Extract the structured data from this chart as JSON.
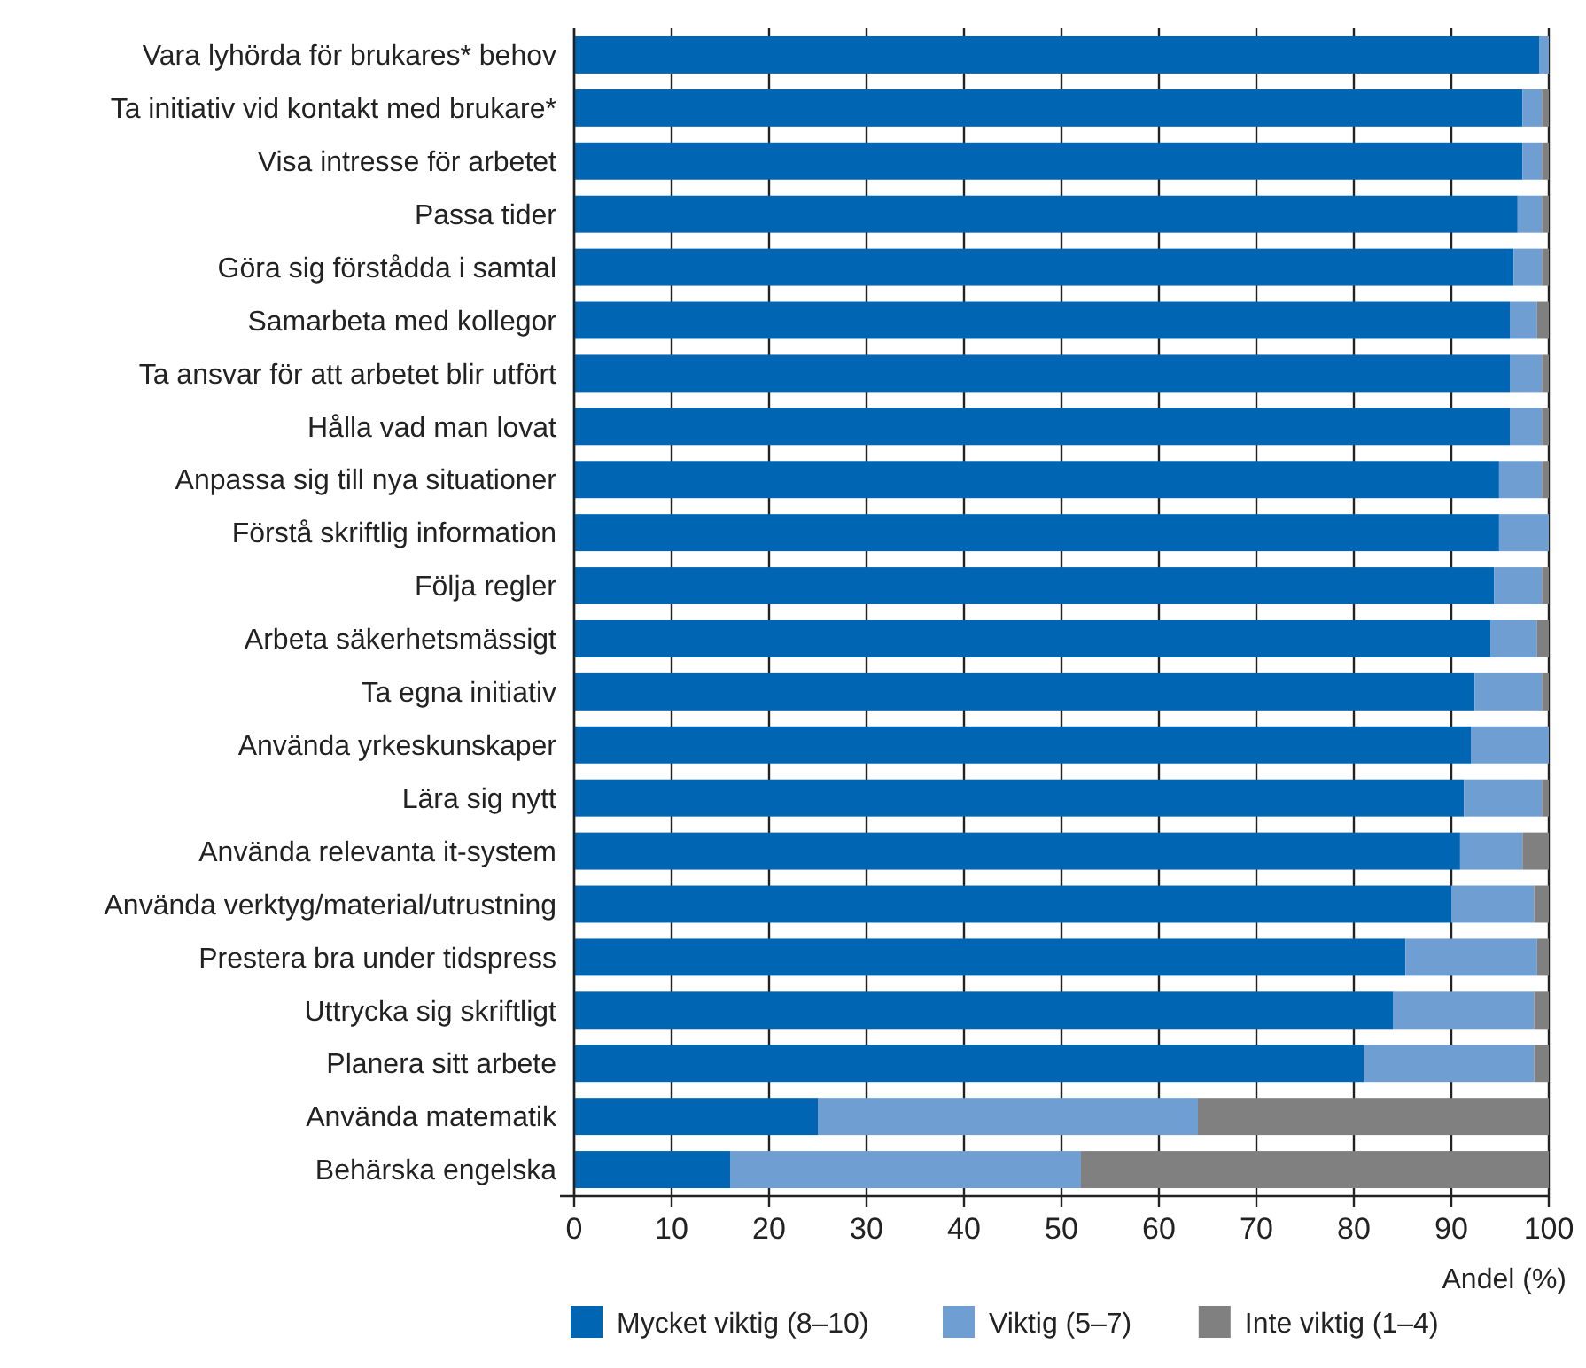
{
  "chart_data": {
    "type": "bar",
    "orientation": "horizontal",
    "stacked": true,
    "xlabel": "Andel (%)",
    "categories": [
      "Vara lyhörda för brukares* behov",
      "Ta initiativ vid kontakt med brukare*",
      "Visa intresse för arbetet",
      "Passa tider",
      "Göra sig förstådda i samtal",
      "Samarbeta med kollegor",
      "Ta ansvar för att arbetet blir utfört",
      "Hålla vad man lovat",
      "Anpassa sig till nya situationer",
      "Förstå skriftlig information",
      "Följa regler",
      "Arbeta säkerhetsmässigt",
      "Ta egna initiativ",
      "Använda yrkeskunskaper",
      "Lära sig nytt",
      "Använda relevanta it-system",
      "Använda verktyg/material/utrustning",
      "Prestera bra under tidspress",
      "Uttrycka sig skriftligt",
      "Planera sitt arbete",
      "Använda matematik",
      "Behärska engelska"
    ],
    "series": [
      {
        "name": "Mycket viktig (8–10)",
        "color": "#0066b3",
        "values": [
          99,
          97.3,
          97.3,
          96.8,
          96.4,
          96,
          96,
          96,
          94.9,
          94.9,
          94.4,
          94,
          92.4,
          92,
          91.3,
          90.9,
          90,
          85.3,
          84,
          81,
          25,
          16
        ]
      },
      {
        "name": "Viktig (5–7)",
        "color": "#6f9fd2",
        "values": [
          1,
          2,
          2,
          2.5,
          2.9,
          2.8,
          3.3,
          3.3,
          4.4,
          5.1,
          4.9,
          4.8,
          6.9,
          8,
          8,
          6.4,
          8.5,
          13.5,
          14.5,
          17.5,
          39,
          36
        ]
      },
      {
        "name": "Inte viktig (1–4)",
        "color": "#808080",
        "values": [
          0,
          0.7,
          0.7,
          0.7,
          0.7,
          1.2,
          0.7,
          0.7,
          0.7,
          0,
          0.7,
          1.2,
          0.7,
          0,
          0.7,
          2.7,
          1.5,
          1.2,
          1.5,
          1.5,
          36,
          48
        ]
      }
    ],
    "xlim": [
      0,
      100
    ],
    "xticks": [
      0,
      10,
      20,
      30,
      40,
      50,
      60,
      70,
      80,
      90,
      100
    ],
    "grid": "x",
    "legend": "bottom"
  }
}
